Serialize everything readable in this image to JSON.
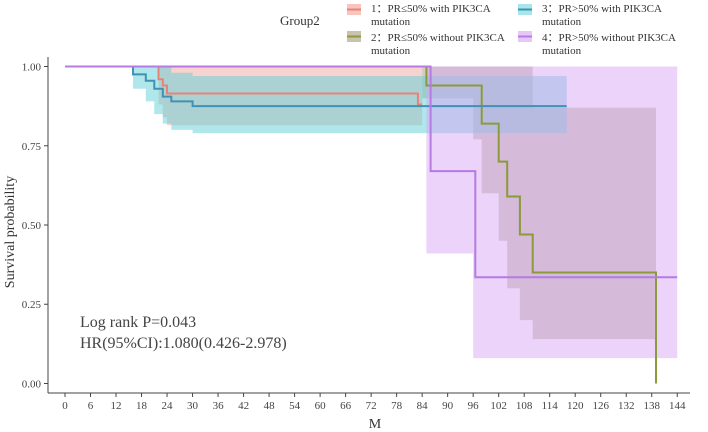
{
  "chart_data": {
    "type": "line",
    "subtype": "kaplan-meier survival curve with confidence bands",
    "xlabel": "M",
    "ylabel": "Survival probability",
    "xlim": [
      -4,
      147
    ],
    "ylim": [
      -0.03,
      1.03
    ],
    "x_ticks": [
      0,
      6,
      12,
      18,
      24,
      30,
      36,
      42,
      48,
      54,
      60,
      66,
      72,
      78,
      84,
      90,
      96,
      102,
      108,
      114,
      120,
      126,
      132,
      138,
      144
    ],
    "y_ticks": [
      0.0,
      0.25,
      0.5,
      0.75,
      1.0
    ],
    "y_tick_labels": [
      "0.00",
      "0.25",
      "0.50",
      "0.75",
      "1.00"
    ],
    "grid": false,
    "legend": {
      "title": "Group2",
      "placement": "top",
      "entries": [
        {
          "id": "s1",
          "line1": "1：PR≤50% with PIK3CA",
          "line2": "mutation"
        },
        {
          "id": "s2",
          "line1": "2：PR≤50% without PIK3CA",
          "line2": "mutation"
        },
        {
          "id": "s3",
          "line1": "3：PR>50% with PIK3CA",
          "line2": "mutation"
        },
        {
          "id": "s4",
          "line1": "4：PR>50% without PIK3CA",
          "line2": "mutation"
        }
      ]
    },
    "annotations": [
      "Log rank P=0.043",
      "HR(95%CI):1.080(0.426-2.978)"
    ],
    "series": [
      {
        "name": "1：PR≤50% with PIK3CA mutation",
        "color": "#e8837a",
        "band_color": "#f2a59d",
        "steps": [
          [
            0,
            1.0
          ],
          [
            22,
            0.96
          ],
          [
            23,
            0.94
          ],
          [
            24,
            0.915
          ],
          [
            82,
            0.915
          ],
          [
            83,
            0.88
          ],
          [
            84,
            0.88
          ]
        ],
        "band": [
          [
            0,
            1.0,
            1.0
          ],
          [
            22,
            0.88,
            1.0
          ],
          [
            23,
            0.84,
            1.0
          ],
          [
            24,
            0.815,
            1.0
          ],
          [
            82,
            0.815,
            1.0
          ],
          [
            84,
            0.815,
            1.0
          ]
        ]
      },
      {
        "name": "2：PR≤50% without PIK3CA mutation",
        "color": "#8b9a3b",
        "band_color": "#a89a80",
        "steps": [
          [
            0,
            1.0
          ],
          [
            84,
            1.0
          ],
          [
            85,
            0.94
          ],
          [
            96,
            0.94
          ],
          [
            98,
            0.82
          ],
          [
            102,
            0.7
          ],
          [
            104,
            0.59
          ],
          [
            107,
            0.47
          ],
          [
            110,
            0.35
          ],
          [
            139,
            0.35
          ],
          [
            139,
            0.0
          ]
        ],
        "band": [
          [
            0,
            1.0,
            1.0
          ],
          [
            84,
            0.9,
            1.0
          ],
          [
            96,
            0.77,
            1.0
          ],
          [
            98,
            0.6,
            1.0
          ],
          [
            102,
            0.45,
            1.0
          ],
          [
            104,
            0.3,
            1.0
          ],
          [
            107,
            0.2,
            1.0
          ],
          [
            110,
            0.14,
            0.87
          ],
          [
            139,
            0.14,
            0.87
          ]
        ]
      },
      {
        "name": "3：PR>50% with PIK3CA mutation",
        "color": "#3f92b5",
        "band_color": "#5fd0d8",
        "steps": [
          [
            0,
            1.0
          ],
          [
            16,
            0.975
          ],
          [
            19,
            0.955
          ],
          [
            21,
            0.93
          ],
          [
            23,
            0.905
          ],
          [
            25,
            0.89
          ],
          [
            30,
            0.875
          ],
          [
            118,
            0.875
          ]
        ],
        "band": [
          [
            0,
            1.0,
            1.0
          ],
          [
            16,
            0.93,
            1.0
          ],
          [
            19,
            0.89,
            1.0
          ],
          [
            21,
            0.85,
            1.0
          ],
          [
            23,
            0.82,
            1.0
          ],
          [
            25,
            0.8,
            0.98
          ],
          [
            30,
            0.79,
            0.97
          ],
          [
            118,
            0.79,
            0.97
          ]
        ]
      },
      {
        "name": "4：PR>50% without PIK3CA mutation",
        "color": "#b57be3",
        "band_color": "#d8a7f5",
        "steps": [
          [
            0,
            1.0
          ],
          [
            85,
            1.0
          ],
          [
            86,
            0.67
          ],
          [
            96,
            0.67
          ],
          [
            96.5,
            0.335
          ],
          [
            144,
            0.335
          ]
        ],
        "band": [
          [
            0,
            1.0,
            1.0
          ],
          [
            85,
            0.41,
            1.0
          ],
          [
            96,
            0.08,
            1.0
          ],
          [
            144,
            0.08,
            1.0
          ]
        ]
      }
    ]
  }
}
